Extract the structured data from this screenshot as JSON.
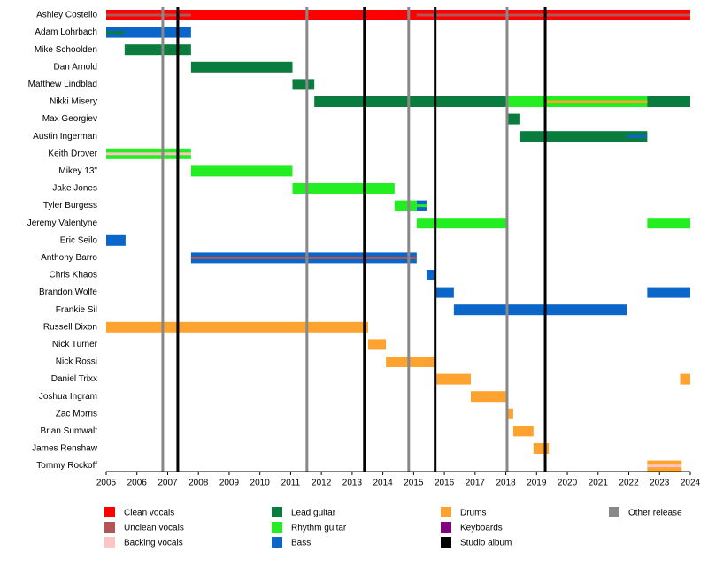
{
  "chart_data": {
    "type": "timeline",
    "xlim": [
      2005,
      2024
    ],
    "xticks": [
      2005,
      2006,
      2007,
      2008,
      2009,
      2010,
      2011,
      2012,
      2013,
      2014,
      2015,
      2016,
      2017,
      2018,
      2019,
      2020,
      2021,
      2022,
      2023,
      2024
    ],
    "legend": [
      {
        "name": "Clean vocals",
        "color": "#ff0000"
      },
      {
        "name": "Unclean vocals",
        "color": "#b35555"
      },
      {
        "name": "Backing vocals",
        "color": "#ffc4c4"
      },
      {
        "name": "Lead guitar",
        "color": "#0a7d3e"
      },
      {
        "name": "Rhythm guitar",
        "color": "#22ee22"
      },
      {
        "name": "Bass",
        "color": "#0a66c8"
      },
      {
        "name": "Drums",
        "color": "#ffa330"
      },
      {
        "name": "Keyboards",
        "color": "#800080"
      },
      {
        "name": "Studio album",
        "color": "#000000"
      },
      {
        "name": "Other release",
        "color": "#888888"
      }
    ],
    "releases": [
      {
        "type": "Other release",
        "date": 2006.84
      },
      {
        "type": "Studio album",
        "date": 2007.33
      },
      {
        "type": "Other release",
        "date": 2011.53
      },
      {
        "type": "Studio album",
        "date": 2013.4
      },
      {
        "type": "Other release",
        "date": 2014.84
      },
      {
        "type": "Studio album",
        "date": 2015.7
      },
      {
        "type": "Other release",
        "date": 2018.04
      },
      {
        "type": "Studio album",
        "date": 2019.28
      }
    ],
    "members": [
      {
        "name": "Ashley Costello",
        "bars": [
          {
            "role": "Clean vocals",
            "start": 2005,
            "end": 2024
          },
          {
            "role": "Unclean vocals",
            "start": 2005,
            "end": 2007.76,
            "stripe": true
          },
          {
            "role": "Unclean vocals",
            "start": 2015.1,
            "end": 2024,
            "stripe": true
          }
        ]
      },
      {
        "name": "Adam Lohrbach",
        "bars": [
          {
            "role": "Bass",
            "start": 2005,
            "end": 2007.76
          },
          {
            "role": "Lead guitar",
            "start": 2005,
            "end": 2005.6,
            "stripe": true
          }
        ]
      },
      {
        "name": "Mike Schoolden",
        "bars": [
          {
            "role": "Lead guitar",
            "start": 2005.6,
            "end": 2007.76
          }
        ]
      },
      {
        "name": "Dan Arnold",
        "bars": [
          {
            "role": "Lead guitar",
            "start": 2007.76,
            "end": 2011.06
          }
        ]
      },
      {
        "name": "Matthew Lindblad",
        "bars": [
          {
            "role": "Lead guitar",
            "start": 2011.06,
            "end": 2011.77
          }
        ]
      },
      {
        "name": "Nikki Misery",
        "bars": [
          {
            "role": "Lead guitar",
            "start": 2011.77,
            "end": 2024
          },
          {
            "role": "Rhythm guitar",
            "start": 2018.01,
            "end": 2022.6
          },
          {
            "role": "Drums",
            "start": 2019.33,
            "end": 2022.6,
            "stripe": true
          }
        ]
      },
      {
        "name": "Max Georgiev",
        "bars": [
          {
            "role": "Lead guitar",
            "start": 2018.01,
            "end": 2018.47
          }
        ]
      },
      {
        "name": "Austin Ingerman",
        "bars": [
          {
            "role": "Lead guitar",
            "start": 2018.47,
            "end": 2022.6
          },
          {
            "role": "Bass",
            "start": 2021.93,
            "end": 2022.6,
            "stripe": true
          }
        ]
      },
      {
        "name": "Keith Drover",
        "bars": [
          {
            "role": "Rhythm guitar",
            "start": 2005,
            "end": 2007.76
          },
          {
            "role": "Backing vocals",
            "start": 2005,
            "end": 2007.76,
            "stripe": true
          }
        ]
      },
      {
        "name": "Mikey 13\"",
        "bars": [
          {
            "role": "Rhythm guitar",
            "start": 2007.76,
            "end": 2011.06
          }
        ]
      },
      {
        "name": "Jake Jones",
        "bars": [
          {
            "role": "Rhythm guitar",
            "start": 2011.06,
            "end": 2014.38
          }
        ]
      },
      {
        "name": "Tyler Burgess",
        "bars": [
          {
            "role": "Rhythm guitar",
            "start": 2014.38,
            "end": 2015.1
          },
          {
            "role": "Bass",
            "start": 2015.1,
            "end": 2015.42
          },
          {
            "role": "Rhythm guitar",
            "start": 2015.1,
            "end": 2015.42,
            "stripe": true
          }
        ]
      },
      {
        "name": "Jeremy Valentyne",
        "bars": [
          {
            "role": "Rhythm guitar",
            "start": 2015.1,
            "end": 2018.01
          },
          {
            "role": "Rhythm guitar",
            "start": 2022.6,
            "end": 2024
          }
        ]
      },
      {
        "name": "Eric Seilo",
        "bars": [
          {
            "role": "Bass",
            "start": 2005,
            "end": 2005.63
          }
        ]
      },
      {
        "name": "Anthony Barro",
        "bars": [
          {
            "role": "Bass",
            "start": 2007.76,
            "end": 2015.1
          },
          {
            "role": "Unclean vocals",
            "start": 2007.76,
            "end": 2015.1,
            "stripe": true
          }
        ]
      },
      {
        "name": "Chris Khaos",
        "bars": [
          {
            "role": "Bass",
            "start": 2015.42,
            "end": 2015.71
          }
        ]
      },
      {
        "name": "Brandon Wolfe",
        "bars": [
          {
            "role": "Bass",
            "start": 2015.71,
            "end": 2016.31
          },
          {
            "role": "Bass",
            "start": 2022.6,
            "end": 2024
          }
        ]
      },
      {
        "name": "Frankie Sil",
        "bars": [
          {
            "role": "Bass",
            "start": 2016.31,
            "end": 2021.93
          }
        ]
      },
      {
        "name": "Russell Dixon",
        "bars": [
          {
            "role": "Drums",
            "start": 2005,
            "end": 2013.52
          }
        ]
      },
      {
        "name": "Nick Turner",
        "bars": [
          {
            "role": "Drums",
            "start": 2013.52,
            "end": 2014.1
          }
        ]
      },
      {
        "name": "Nick Rossi",
        "bars": [
          {
            "role": "Drums",
            "start": 2014.1,
            "end": 2015.74
          }
        ]
      },
      {
        "name": "Daniel Trixx",
        "bars": [
          {
            "role": "Drums",
            "start": 2015.74,
            "end": 2016.86
          },
          {
            "role": "Drums",
            "start": 2023.67,
            "end": 2024
          }
        ]
      },
      {
        "name": "Joshua Ingram",
        "bars": [
          {
            "role": "Drums",
            "start": 2016.86,
            "end": 2018.01
          }
        ]
      },
      {
        "name": "Zac Morris",
        "bars": [
          {
            "role": "Drums",
            "start": 2018.01,
            "end": 2018.24
          }
        ]
      },
      {
        "name": "Brian Sumwalt",
        "bars": [
          {
            "role": "Drums",
            "start": 2018.24,
            "end": 2018.9
          }
        ]
      },
      {
        "name": "James Renshaw",
        "bars": [
          {
            "role": "Drums",
            "start": 2018.9,
            "end": 2019.4
          }
        ]
      },
      {
        "name": "Tommy Rockoff",
        "bars": [
          {
            "role": "Drums",
            "start": 2022.6,
            "end": 2023.72
          },
          {
            "role": "Backing vocals",
            "start": 2022.6,
            "end": 2023.72,
            "stripe": true
          }
        ]
      }
    ]
  }
}
